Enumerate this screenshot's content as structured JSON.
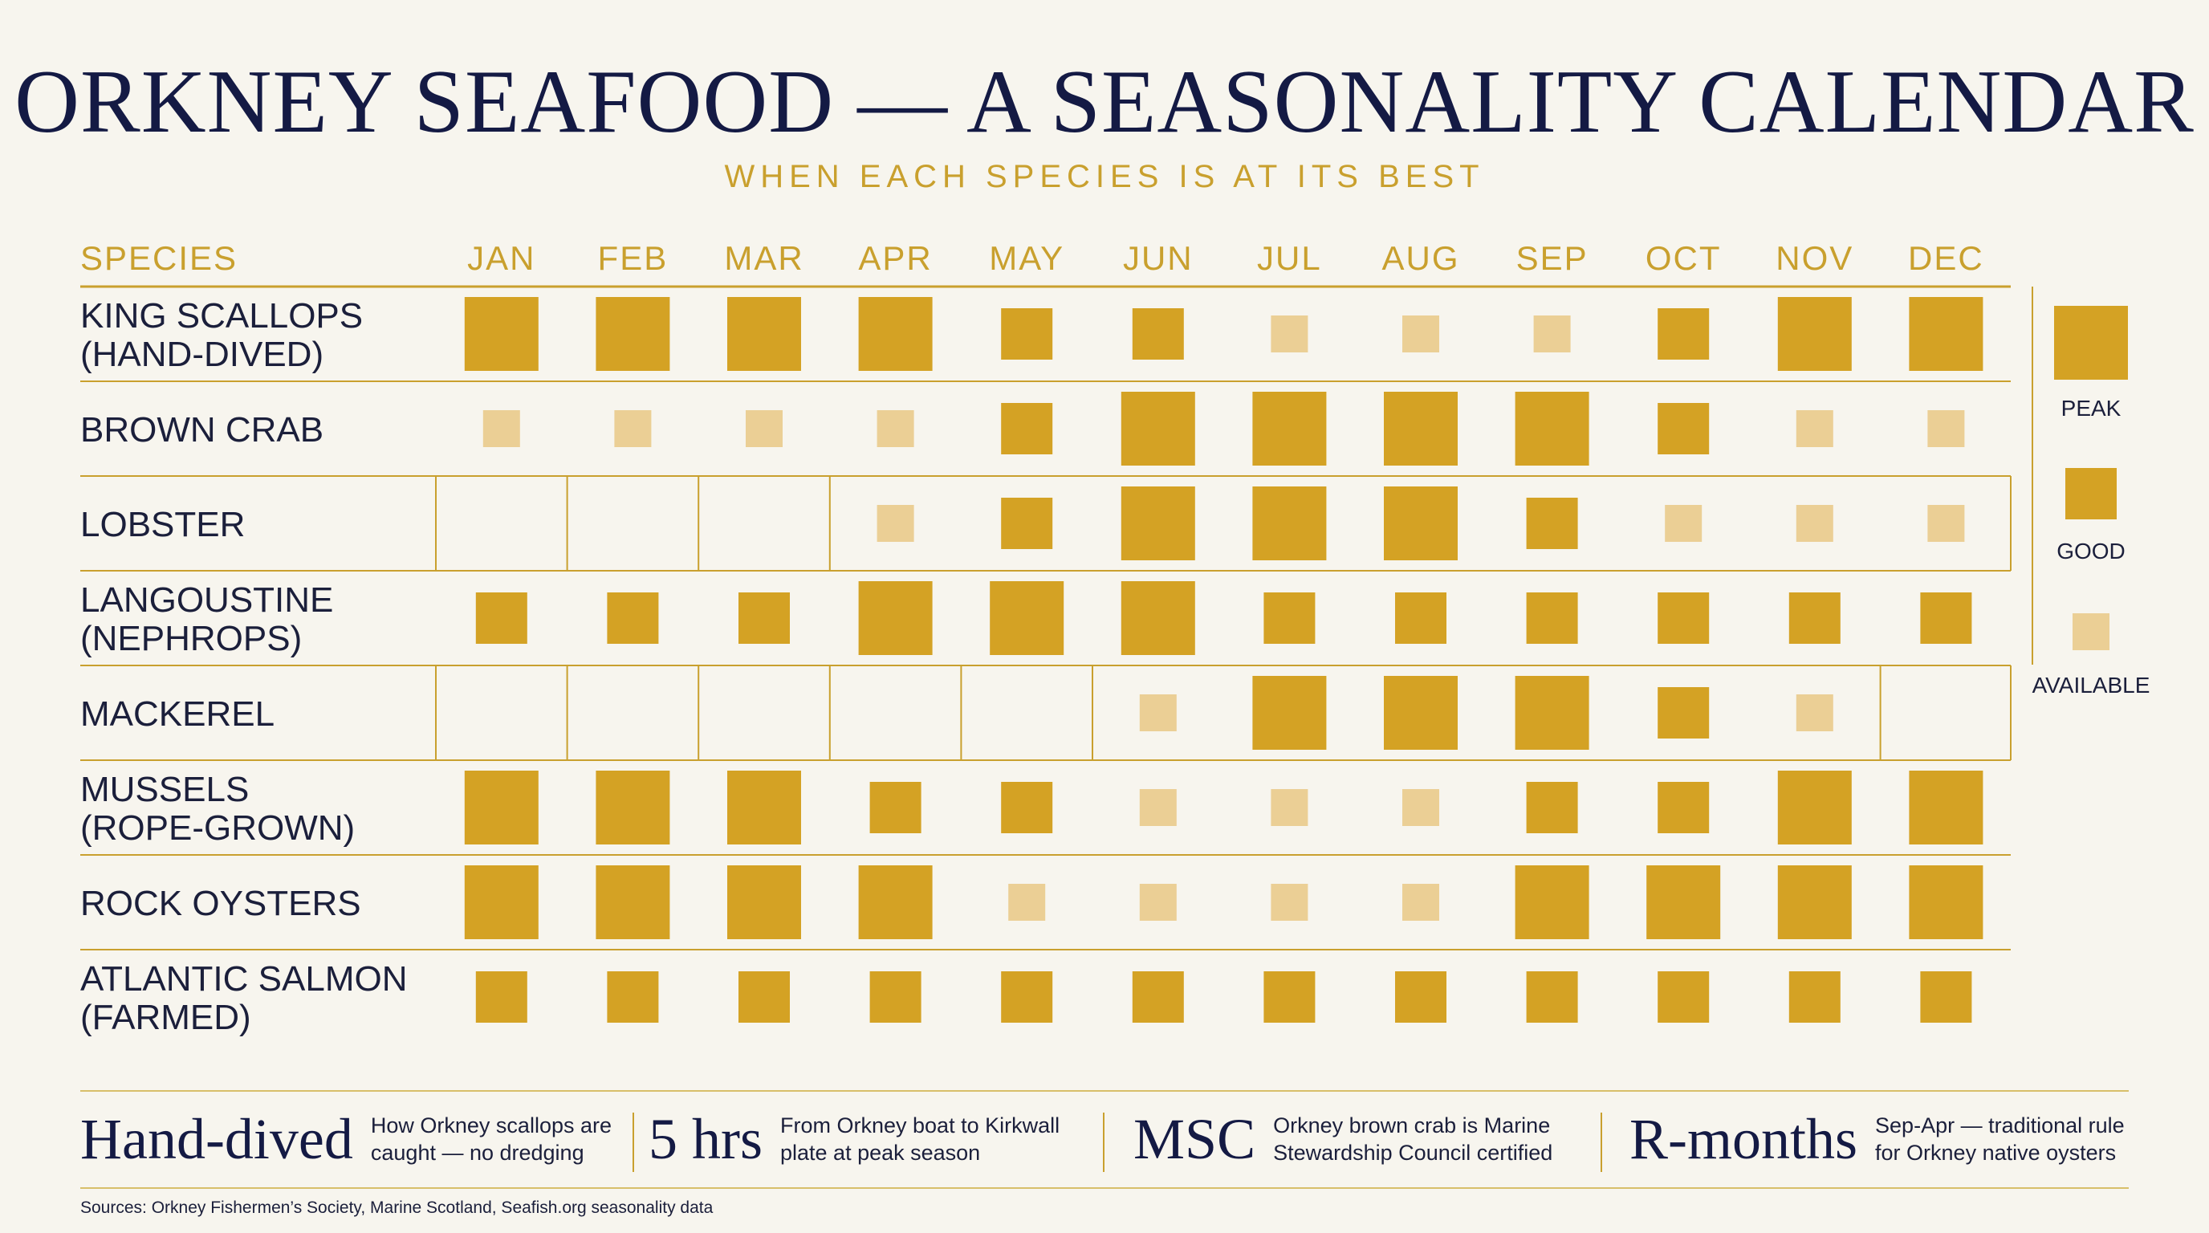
{
  "title": "ORKNEY SEAFOOD — A SEASONALITY CALENDAR",
  "subtitle": "WHEN EACH SPECIES IS AT ITS BEST",
  "colors": {
    "gold": "#d4a224",
    "pale": "#ebcf95",
    "navy": "#141a44",
    "rule": "#c9a02e"
  },
  "chart_data": {
    "type": "heatmap",
    "species_header": "SPECIES",
    "months": [
      "JAN",
      "FEB",
      "MAR",
      "APR",
      "MAY",
      "JUN",
      "JUL",
      "AUG",
      "SEP",
      "OCT",
      "NOV",
      "DEC"
    ],
    "levels": [
      "none",
      "available",
      "good",
      "peak"
    ],
    "rows": [
      {
        "species": [
          "KING SCALLOPS",
          "(HAND-DIVED)"
        ],
        "values": [
          3,
          3,
          3,
          3,
          2,
          2,
          1,
          1,
          1,
          2,
          3,
          3
        ]
      },
      {
        "species": [
          "BROWN CRAB"
        ],
        "values": [
          1,
          1,
          1,
          1,
          2,
          3,
          3,
          3,
          3,
          2,
          1,
          1
        ]
      },
      {
        "species": [
          "LOBSTER"
        ],
        "values": [
          0,
          0,
          0,
          1,
          2,
          3,
          3,
          3,
          2,
          1,
          1,
          1
        ]
      },
      {
        "species": [
          "LANGOUSTINE",
          "(NEPHROPS)"
        ],
        "values": [
          2,
          2,
          2,
          3,
          3,
          3,
          2,
          2,
          2,
          2,
          2,
          2
        ]
      },
      {
        "species": [
          "MACKEREL"
        ],
        "values": [
          0,
          0,
          0,
          0,
          0,
          1,
          3,
          3,
          3,
          2,
          1,
          0
        ]
      },
      {
        "species": [
          "MUSSELS",
          "(ROPE-GROWN)"
        ],
        "values": [
          3,
          3,
          3,
          2,
          2,
          1,
          1,
          1,
          2,
          2,
          3,
          3
        ]
      },
      {
        "species": [
          "ROCK OYSTERS"
        ],
        "values": [
          3,
          3,
          3,
          3,
          1,
          1,
          1,
          1,
          3,
          3,
          3,
          3
        ]
      },
      {
        "species": [
          "ATLANTIC SALMON",
          "(FARMED)"
        ],
        "values": [
          2,
          2,
          2,
          2,
          2,
          2,
          2,
          2,
          2,
          2,
          2,
          2
        ]
      }
    ],
    "legend": [
      {
        "level": 3,
        "label": "PEAK"
      },
      {
        "level": 2,
        "label": "GOOD"
      },
      {
        "level": 1,
        "label": "AVAILABLE"
      }
    ]
  },
  "stats": [
    {
      "big": "Hand-dived",
      "desc": [
        "How Orkney scallops are",
        "caught — no dredging"
      ]
    },
    {
      "big": "5 hrs",
      "desc": [
        "From Orkney boat to Kirkwall",
        "plate at peak season"
      ]
    },
    {
      "big": "MSC",
      "desc": [
        "Orkney brown crab is Marine",
        "Stewardship Council certified"
      ]
    },
    {
      "big": "R-months",
      "desc": [
        "Sep-Apr — traditional rule",
        "for Orkney native oysters"
      ]
    }
  ],
  "sources": "Sources: Orkney Fishermen’s Society, Marine Scotland, Seafish.org seasonality data"
}
